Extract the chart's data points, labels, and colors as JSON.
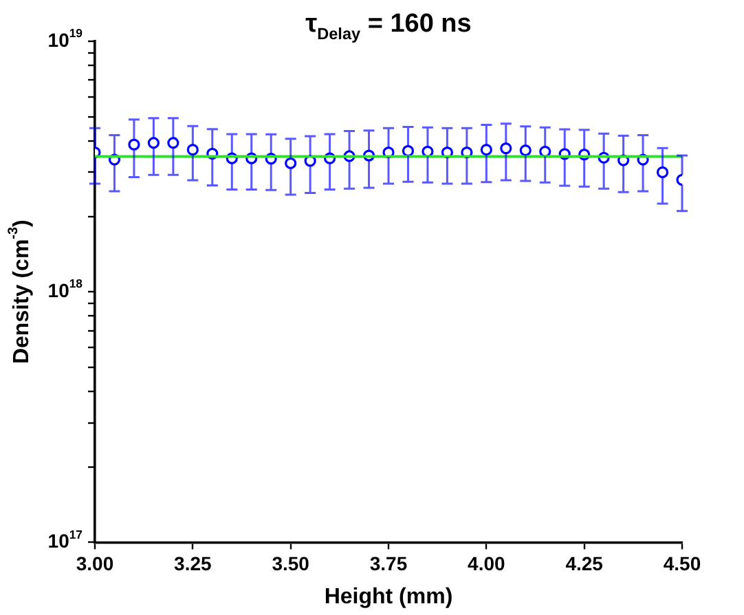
{
  "chart_data": {
    "type": "scatter",
    "title": "τ$_{Delay}$ = 160 ns",
    "xlabel": "Height (mm)",
    "ylabel": "Density (cm$^{-3}$)",
    "x": [
      3.0,
      3.05,
      3.1,
      3.15,
      3.2,
      3.25,
      3.3,
      3.35,
      3.4,
      3.45,
      3.5,
      3.55,
      3.6,
      3.65,
      3.7,
      3.75,
      3.8,
      3.85,
      3.9,
      3.95,
      4.0,
      4.05,
      4.1,
      4.15,
      4.2,
      4.25,
      4.3,
      4.35,
      4.4,
      4.45,
      4.5
    ],
    "series": [
      {
        "type": "scatter",
        "color": "#0000ff",
        "marker": "circle",
        "values": [
          3.6e+18,
          3.37e+18,
          3.87e+18,
          3.93e+18,
          3.93e+18,
          3.69e+18,
          3.56e+18,
          3.41e+18,
          3.41e+18,
          3.4e+18,
          3.26e+18,
          3.33e+18,
          3.41e+18,
          3.48e+18,
          3.5e+18,
          3.6e+18,
          3.65e+18,
          3.63e+18,
          3.6e+18,
          3.6e+18,
          3.69e+18,
          3.74e+18,
          3.67e+18,
          3.63e+18,
          3.55e+18,
          3.53e+18,
          3.43e+18,
          3.35e+18,
          3.37e+18,
          3e+18,
          2.8e+18
        ],
        "errors": [
          9e+17,
          8.5e+17,
          1e+18,
          1e+18,
          1e+18,
          9e+17,
          9e+17,
          8.5e+17,
          8.5e+17,
          8.5e+17,
          8.2e+17,
          8.5e+17,
          8.5e+17,
          9e+17,
          9e+17,
          9e+17,
          9e+17,
          9e+17,
          9e+17,
          9e+17,
          9.5e+17,
          9.5e+17,
          9e+17,
          9e+17,
          9e+17,
          9e+17,
          8.5e+17,
          8.5e+17,
          8.5e+17,
          7.5e+17,
          7e+17
        ]
      },
      {
        "type": "line",
        "color": "#33dd33",
        "marker": "none",
        "x": [
          3.0,
          4.5
        ],
        "values": [
          3.47e+18,
          3.47e+18
        ]
      }
    ],
    "log": "y",
    "xlim": [
      3.0,
      4.5
    ],
    "xticks": [
      {
        "value": 3.0,
        "label": "3.00"
      },
      {
        "value": 3.25,
        "label": "3.25"
      },
      {
        "value": 3.5,
        "label": "3.50"
      },
      {
        "value": 3.75,
        "label": "3.75"
      },
      {
        "value": 4.0,
        "label": "4.00"
      },
      {
        "value": 4.25,
        "label": "4.25"
      },
      {
        "value": 4.5,
        "label": "4.50"
      }
    ],
    "ylim": [
      1e+17,
      1e+19
    ],
    "yticks": [
      {
        "value": 1e+17,
        "label": "10$^{17}$"
      },
      {
        "value": 2e+17,
        "label": null
      },
      {
        "value": 3e+17,
        "label": null
      },
      {
        "value": 4e+17,
        "label": null
      },
      {
        "value": 5e+17,
        "label": null
      },
      {
        "value": 6e+17,
        "label": null
      },
      {
        "value": 7e+17,
        "label": null
      },
      {
        "value": 8e+17,
        "label": null
      },
      {
        "value": 9e+17,
        "label": null
      },
      {
        "value": 1e+18,
        "label": "10$^{18}$"
      },
      {
        "value": 2e+18,
        "label": null
      },
      {
        "value": 3e+18,
        "label": null
      },
      {
        "value": 4e+18,
        "label": null
      },
      {
        "value": 5e+18,
        "label": null
      },
      {
        "value": 6e+18,
        "label": null
      },
      {
        "value": 7e+18,
        "label": null
      },
      {
        "value": 8e+18,
        "label": null
      },
      {
        "value": 9e+18,
        "label": null
      },
      {
        "value": 1e+19,
        "label": "10$^{19}$"
      }
    ],
    "grid": false,
    "legend": false
  }
}
